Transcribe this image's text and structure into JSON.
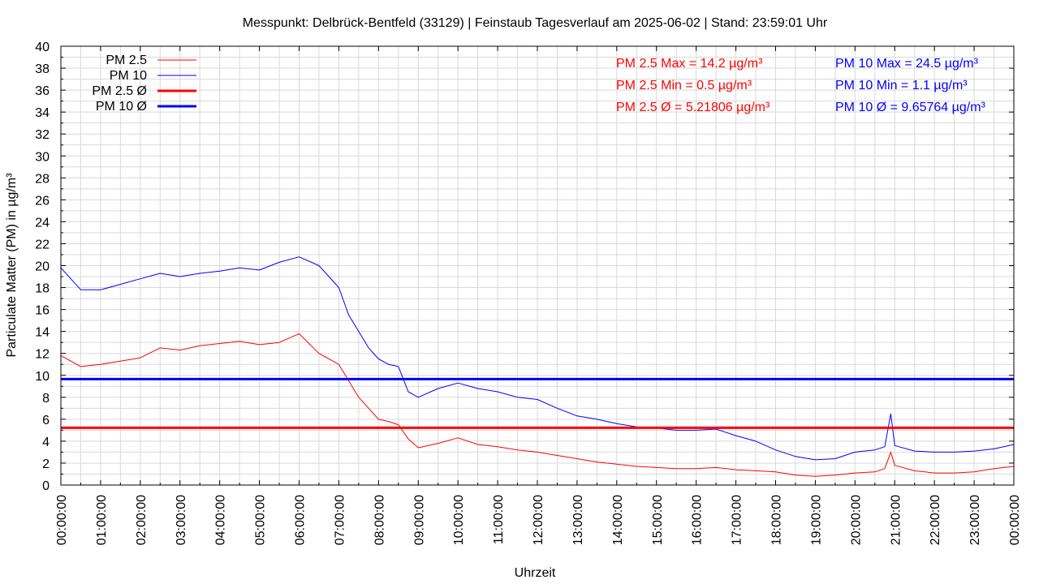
{
  "chart_data": {
    "type": "line",
    "title": "Messpunkt: Delbrück-Bentfeld (33129) | Feinstaub Tagesverlauf am 2025-06-02 | Stand: 23:59:01 Uhr",
    "xlabel": "Uhrzeit",
    "ylabel": "Particulate Matter (PM) in µg/m³",
    "ylim": [
      0,
      40
    ],
    "yticks": [
      0,
      2,
      4,
      6,
      8,
      10,
      12,
      14,
      16,
      18,
      20,
      22,
      24,
      26,
      28,
      30,
      32,
      34,
      36,
      38,
      40
    ],
    "xticks": [
      "00:00:00",
      "01:00:00",
      "02:00:00",
      "03:00:00",
      "04:00:00",
      "05:00:00",
      "06:00:00",
      "07:00:00",
      "08:00:00",
      "09:00:00",
      "10:00:00",
      "11:00:00",
      "12:00:00",
      "13:00:00",
      "14:00:00",
      "15:00:00",
      "16:00:00",
      "17:00:00",
      "18:00:00",
      "19:00:00",
      "20:00:00",
      "21:00:00",
      "22:00:00",
      "23:00:00",
      "00:00:00"
    ],
    "grid": true,
    "legend_position": "top-left",
    "x_hours": [
      0,
      0.5,
      1,
      1.5,
      2,
      2.5,
      3,
      3.5,
      4,
      4.5,
      5,
      5.5,
      6,
      6.5,
      7,
      7.25,
      7.5,
      7.75,
      8,
      8.25,
      8.5,
      8.75,
      9,
      9.5,
      10,
      10.5,
      11,
      11.5,
      12,
      12.5,
      13,
      13.5,
      14,
      14.5,
      15,
      15.5,
      16,
      16.5,
      17,
      17.5,
      18,
      18.5,
      19,
      19.5,
      20,
      20.5,
      20.75,
      20.9,
      21,
      21.5,
      22,
      22.5,
      23,
      23.5,
      24
    ],
    "series": [
      {
        "name": "PM 2.5",
        "color": "#ff0000",
        "values": [
          11.8,
          10.8,
          11.0,
          11.3,
          11.6,
          12.5,
          12.3,
          12.7,
          12.9,
          13.1,
          12.8,
          13.0,
          13.8,
          12.0,
          11.0,
          9.5,
          8.0,
          7.0,
          6.0,
          5.8,
          5.5,
          4.2,
          3.4,
          3.8,
          4.3,
          3.7,
          3.5,
          3.2,
          3.0,
          2.7,
          2.4,
          2.1,
          1.9,
          1.7,
          1.6,
          1.5,
          1.5,
          1.6,
          1.4,
          1.3,
          1.2,
          0.9,
          0.8,
          0.9,
          1.1,
          1.2,
          1.5,
          3.0,
          1.8,
          1.3,
          1.1,
          1.1,
          1.2,
          1.5,
          1.7
        ]
      },
      {
        "name": "PM 10",
        "color": "#0000ff",
        "values": [
          19.8,
          17.8,
          17.8,
          18.3,
          18.8,
          19.3,
          19.0,
          19.3,
          19.5,
          19.8,
          19.6,
          20.3,
          20.8,
          20.0,
          18.0,
          15.5,
          14.0,
          12.5,
          11.5,
          11.0,
          10.8,
          8.5,
          8.0,
          8.8,
          9.3,
          8.8,
          8.5,
          8.0,
          7.8,
          7.0,
          6.3,
          6.0,
          5.6,
          5.3,
          5.2,
          5.0,
          5.0,
          5.1,
          4.5,
          4.0,
          3.2,
          2.6,
          2.3,
          2.4,
          3.0,
          3.2,
          3.5,
          6.5,
          3.6,
          3.1,
          3.0,
          3.0,
          3.1,
          3.3,
          3.7
        ]
      },
      {
        "name": "PM 2.5 Ø",
        "color": "#ff0000",
        "values": [
          5.21806,
          5.21806
        ]
      },
      {
        "name": "PM 10 Ø",
        "color": "#0000ff",
        "values": [
          9.65764,
          9.65764
        ]
      }
    ],
    "stats": [
      {
        "text": "PM 2.5 Max = 14.2 µg/m³",
        "color": "#ff0000"
      },
      {
        "text": "PM 2.5 Min = 0.5 µg/m³",
        "color": "#ff0000"
      },
      {
        "text": "PM 2.5 Ø = 5.21806 µg/m³",
        "color": "#ff0000"
      },
      {
        "text": "PM 10 Max = 24.5 µg/m³",
        "color": "#0000ff"
      },
      {
        "text": "PM 10 Min = 1.1 µg/m³",
        "color": "#0000ff"
      },
      {
        "text": "PM 10 Ø = 9.65764 µg/m³",
        "color": "#0000ff"
      }
    ]
  }
}
